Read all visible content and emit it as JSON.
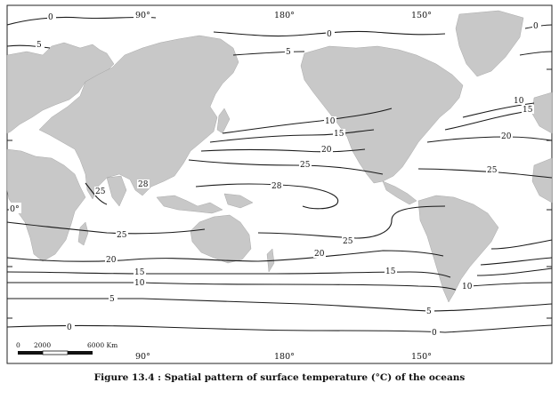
{
  "figure": {
    "caption": "Figure 13.4 : Spatial pattern of surface temperature (°C) of the oceans"
  },
  "map": {
    "longitude_labels_top": [
      "90°",
      "180°",
      "150°"
    ],
    "longitude_labels_bottom": [
      "90°",
      "180°",
      "150°"
    ],
    "latitude_labels": [
      "0°"
    ],
    "isotherm_values_c": [
      0,
      5,
      10,
      15,
      20,
      25,
      28
    ],
    "isotherm_labels": [
      "0",
      "0",
      "0",
      "5",
      "5",
      "10",
      "15",
      "20",
      "25",
      "28",
      "28",
      "25",
      "15",
      "20",
      "10",
      "25",
      "25",
      "25",
      "20",
      "20",
      "15",
      "15",
      "10",
      "10",
      "5",
      "5",
      "0",
      "0"
    ],
    "scale_bar": {
      "labels": [
        "0",
        "2000",
        "6000 Km"
      ]
    },
    "colors": {
      "land": "#c8c8c8",
      "isotherm": "#1a1a1a",
      "ocean": "#ffffff"
    }
  }
}
